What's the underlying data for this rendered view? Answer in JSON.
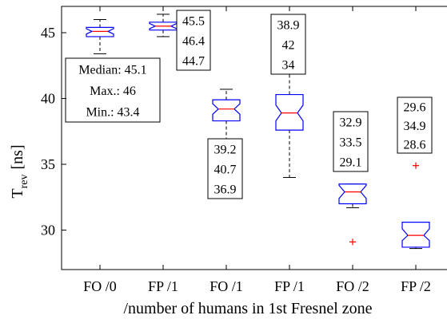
{
  "chart_data": {
    "type": "box",
    "ylabel": "T",
    "ylabel_sub": "rev",
    "ylabel_unit": "[ns]",
    "xlabel": "/number of humans in 1st Fresnel zone",
    "ylim": [
      27,
      47
    ],
    "yticks": [
      30,
      35,
      40,
      45
    ],
    "categories": [
      "FO /0",
      "FP /1",
      "FO /1",
      "FP /1",
      "FO /2",
      "FP /2"
    ],
    "boxes": [
      {
        "median": 45.1,
        "q1": 44.7,
        "q3": 45.4,
        "notch_lo": 44.9,
        "notch_hi": 45.3,
        "whisker_lo": 43.4,
        "whisker_hi": 46.0,
        "outliers": []
      },
      {
        "median": 45.5,
        "q1": 45.2,
        "q3": 45.8,
        "notch_lo": 45.3,
        "notch_hi": 45.7,
        "whisker_lo": 44.7,
        "whisker_hi": 46.4,
        "outliers": []
      },
      {
        "median": 39.2,
        "q1": 38.3,
        "q3": 39.9,
        "notch_lo": 38.8,
        "notch_hi": 39.6,
        "whisker_lo": 36.9,
        "whisker_hi": 40.7,
        "outliers": []
      },
      {
        "median": 38.9,
        "q1": 37.6,
        "q3": 40.3,
        "notch_lo": 38.3,
        "notch_hi": 39.5,
        "whisker_lo": 34.0,
        "whisker_hi": 42.0,
        "outliers": []
      },
      {
        "median": 32.9,
        "q1": 32.0,
        "q3": 33.5,
        "notch_lo": 32.4,
        "notch_hi": 33.4,
        "whisker_lo": 31.7,
        "whisker_hi": 33.5,
        "outliers": [
          29.1
        ]
      },
      {
        "median": 29.6,
        "q1": 28.7,
        "q3": 30.6,
        "notch_lo": 29.2,
        "notch_hi": 30.1,
        "whisker_lo": 28.6,
        "whisker_hi": 30.6,
        "outliers": [
          34.9
        ]
      }
    ],
    "annotations": [
      {
        "lines": [
          "Median: 45.1",
          "Max.: 46",
          "Min.: 43.4"
        ]
      },
      {
        "lines": [
          "45.5",
          "46.4",
          "44.7"
        ]
      },
      {
        "lines": [
          "39.2",
          "40.7",
          "36.9"
        ]
      },
      {
        "lines": [
          "38.9",
          "42",
          "34"
        ]
      },
      {
        "lines": [
          "32.9",
          "33.5",
          "29.1"
        ]
      },
      {
        "lines": [
          "29.6",
          "34.9",
          "28.6"
        ]
      }
    ],
    "colors": {
      "box": "#0000ff",
      "median": "#ff0000",
      "whisker": "#000000",
      "outlier": "#ff0000"
    }
  }
}
